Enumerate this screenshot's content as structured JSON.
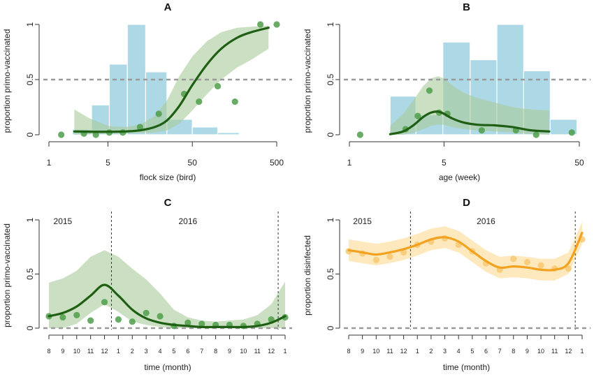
{
  "colors": {
    "green_line": "#1f5f14",
    "green_band": "#a9cc9a",
    "green_point": "#4f9e4a",
    "hist_blue": "#add8e6",
    "orange_line": "#f2a21f",
    "orange_band": "#fde2a8",
    "orange_point": "#f7c873",
    "ref_gray": "#9a9a9a"
  },
  "chart_data": [
    {
      "type": "line",
      "panel": "A",
      "title": "A",
      "xlabel": "flock size (bird)",
      "ylabel": "proportion primo-vaccinated",
      "x_scale": "log",
      "xlim": [
        1,
        500
      ],
      "ylim": [
        0,
        1
      ],
      "x_ticks": [
        1,
        5,
        50,
        500
      ],
      "x_tick_labels": [
        "1",
        "5",
        "50",
        "500"
      ],
      "y_ticks": [
        0,
        0.5,
        1
      ],
      "y_tick_labels": [
        "0",
        "0.5",
        "1"
      ],
      "reference_line_y": 0.5,
      "histogram": {
        "bins": [
          [
            1.9,
            3.2
          ],
          [
            3.2,
            5.2
          ],
          [
            5.2,
            8.5
          ],
          [
            8.5,
            14
          ],
          [
            14,
            25
          ],
          [
            25,
            50
          ],
          [
            50,
            100
          ],
          [
            100,
            180
          ]
        ],
        "values": [
          0.05,
          0.27,
          0.64,
          1.0,
          0.57,
          0.14,
          0.07,
          0.02
        ]
      },
      "series": [
        {
          "role": "fit",
          "x": [
            2,
            3,
            5,
            8,
            12,
            18,
            25,
            35,
            50,
            75,
            110,
            170,
            250,
            400
          ],
          "y": [
            0.03,
            0.028,
            0.027,
            0.03,
            0.04,
            0.07,
            0.13,
            0.26,
            0.45,
            0.64,
            0.78,
            0.88,
            0.93,
            0.97
          ],
          "lower": [
            0.0,
            0.005,
            0.01,
            0.01,
            0.015,
            0.02,
            0.04,
            0.1,
            0.22,
            0.37,
            0.5,
            0.61,
            0.68,
            0.78
          ],
          "upper": [
            0.23,
            0.15,
            0.08,
            0.07,
            0.09,
            0.17,
            0.31,
            0.53,
            0.71,
            0.85,
            0.93,
            0.97,
            0.98,
            0.99
          ]
        },
        {
          "role": "points",
          "x": [
            1.4,
            2.6,
            3.6,
            5.2,
            7.5,
            12,
            20,
            40,
            60,
            100,
            160,
            320,
            500
          ],
          "y": [
            0.0,
            0.01,
            0.0,
            0.02,
            0.02,
            0.07,
            0.19,
            0.37,
            0.3,
            0.44,
            0.3,
            1.0,
            1.0
          ]
        }
      ]
    },
    {
      "type": "line",
      "panel": "B",
      "title": "B",
      "xlabel": "age (week)",
      "ylabel": "proportion primo-vaccinated",
      "x_scale": "log",
      "xlim": [
        1,
        50
      ],
      "ylim": [
        0,
        1
      ],
      "x_ticks": [
        1,
        5,
        50
      ],
      "x_tick_labels": [
        "1",
        "5",
        "50"
      ],
      "y_ticks": [
        0,
        0.5,
        1
      ],
      "y_tick_labels": [
        "0",
        "0.5",
        "1"
      ],
      "reference_line_y": 0.5,
      "histogram": {
        "bins": [
          [
            2,
            3.1
          ],
          [
            3.1,
            4.9
          ],
          [
            4.9,
            7.8
          ],
          [
            7.8,
            12.3
          ],
          [
            12.3,
            19.4
          ],
          [
            19.4,
            30.5
          ],
          [
            30.5,
            48
          ]
        ],
        "values": [
          0.35,
          0.18,
          0.84,
          0.68,
          1.0,
          0.58,
          0.14
        ]
      },
      "series": [
        {
          "role": "fit",
          "x": [
            2,
            2.5,
            3,
            3.5,
            4,
            4.5,
            5,
            5.7,
            7,
            9,
            12,
            16,
            22,
            30
          ],
          "y": [
            0.005,
            0.03,
            0.09,
            0.16,
            0.2,
            0.21,
            0.19,
            0.15,
            0.11,
            0.09,
            0.085,
            0.07,
            0.04,
            0.03
          ],
          "lower": [
            0.0,
            0.0,
            0.02,
            0.05,
            0.08,
            0.09,
            0.09,
            0.07,
            0.05,
            0.04,
            0.03,
            0.02,
            0.005,
            0.0
          ],
          "upper": [
            0.08,
            0.19,
            0.32,
            0.44,
            0.51,
            0.53,
            0.51,
            0.45,
            0.38,
            0.33,
            0.29,
            0.25,
            0.23,
            0.22
          ]
        },
        {
          "role": "points",
          "x": [
            1.2,
            2.6,
            3.2,
            3.9,
            4.6,
            5.3,
            9.5,
            17,
            24,
            44
          ],
          "y": [
            0.0,
            0.05,
            0.17,
            0.4,
            0.2,
            0.19,
            0.04,
            0.04,
            0.0,
            0.02
          ]
        }
      ]
    },
    {
      "type": "line",
      "panel": "C",
      "title": "C",
      "xlabel": "time (month)",
      "ylabel": "proportion primo-vaccinated",
      "ylim": [
        0,
        1
      ],
      "x_tick_labels": [
        "8",
        "9",
        "10",
        "11",
        "12",
        "1",
        "2",
        "3",
        "4",
        "5",
        "6",
        "7",
        "8",
        "9",
        "10",
        "11",
        "12",
        "1"
      ],
      "y_ticks": [
        0,
        0.5,
        1
      ],
      "y_tick_labels": [
        "0",
        "0.5",
        "1"
      ],
      "year_labels": [
        "2015",
        "2016"
      ],
      "year_boundaries": [
        4.5,
        16.5
      ],
      "reference_line_y": 0,
      "series": [
        {
          "role": "fit",
          "x": [
            0,
            1,
            2,
            3,
            4,
            5,
            6,
            7,
            8,
            9,
            10,
            11,
            12,
            13,
            14,
            15,
            16,
            17
          ],
          "y": [
            0.11,
            0.14,
            0.2,
            0.3,
            0.4,
            0.3,
            0.17,
            0.09,
            0.05,
            0.03,
            0.02,
            0.01,
            0.01,
            0.01,
            0.01,
            0.02,
            0.05,
            0.11
          ],
          "lower": [
            0.0,
            0.0,
            0.04,
            0.14,
            0.22,
            0.15,
            0.06,
            0.03,
            0.01,
            0.0,
            0.0,
            0.0,
            0.0,
            0.0,
            0.0,
            0.0,
            0.0,
            0.0
          ],
          "upper": [
            0.42,
            0.46,
            0.53,
            0.66,
            0.72,
            0.66,
            0.55,
            0.45,
            0.32,
            0.17,
            0.1,
            0.07,
            0.06,
            0.07,
            0.08,
            0.12,
            0.22,
            0.43
          ]
        },
        {
          "role": "points",
          "x": [
            0,
            1,
            2,
            3,
            4,
            5,
            6,
            7,
            8,
            9,
            10,
            11,
            12,
            13,
            14,
            15,
            16,
            17
          ],
          "y": [
            0.11,
            0.1,
            0.12,
            0.07,
            0.24,
            0.08,
            0.06,
            0.14,
            0.11,
            0.02,
            0.05,
            0.04,
            0.03,
            0.03,
            0.02,
            0.04,
            0.08,
            0.1
          ]
        }
      ]
    },
    {
      "type": "line",
      "panel": "D",
      "title": "D",
      "xlabel": "time (month)",
      "ylabel": "proportion disinfected",
      "ylim": [
        0,
        1
      ],
      "x_tick_labels": [
        "8",
        "9",
        "10",
        "11",
        "12",
        "1",
        "2",
        "3",
        "4",
        "5",
        "6",
        "7",
        "8",
        "9",
        "10",
        "11",
        "12",
        "1"
      ],
      "y_ticks": [
        0,
        0.5,
        1
      ],
      "y_tick_labels": [
        "0",
        "0.5",
        "1"
      ],
      "year_labels": [
        "2015",
        "2016"
      ],
      "year_boundaries": [
        4.5,
        16.5
      ],
      "reference_line_y": 0,
      "series": [
        {
          "role": "fit",
          "x": [
            0,
            1,
            2,
            3,
            4,
            5,
            6,
            7,
            8,
            9,
            10,
            11,
            12,
            13,
            14,
            15,
            16,
            17
          ],
          "y": [
            0.72,
            0.7,
            0.68,
            0.7,
            0.73,
            0.77,
            0.82,
            0.84,
            0.8,
            0.71,
            0.62,
            0.56,
            0.57,
            0.56,
            0.54,
            0.54,
            0.6,
            0.88
          ],
          "lower": [
            0.62,
            0.6,
            0.58,
            0.6,
            0.63,
            0.67,
            0.72,
            0.74,
            0.7,
            0.61,
            0.52,
            0.46,
            0.47,
            0.46,
            0.44,
            0.44,
            0.5,
            0.78
          ],
          "upper": [
            0.82,
            0.8,
            0.78,
            0.8,
            0.83,
            0.87,
            0.92,
            0.94,
            0.9,
            0.81,
            0.72,
            0.66,
            0.67,
            0.66,
            0.64,
            0.64,
            0.7,
            0.98
          ]
        },
        {
          "role": "points",
          "x": [
            0,
            1,
            2,
            3,
            4,
            5,
            6,
            7,
            8,
            9,
            10,
            11,
            12,
            13,
            14,
            15,
            16,
            17
          ],
          "y": [
            0.71,
            0.69,
            0.63,
            0.66,
            0.7,
            0.77,
            0.8,
            0.83,
            0.77,
            0.71,
            0.6,
            0.54,
            0.64,
            0.61,
            0.58,
            0.55,
            0.55,
            0.82
          ]
        }
      ]
    }
  ]
}
